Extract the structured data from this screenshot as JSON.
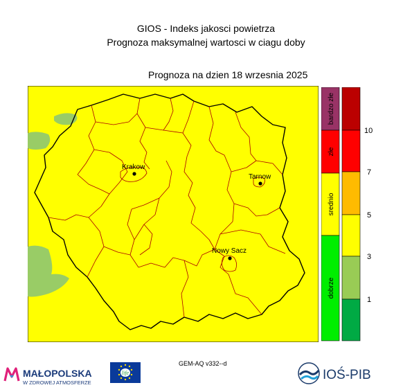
{
  "title_line1": "GIOS - Indeks jakosci powietrza",
  "title_line2": "Prognoza maksymalnej wartosci w ciagu doby",
  "forecast_date": "Prognoza na dzien  18 wrzesnia 2025",
  "model_label": "GEM-AQ v332--d",
  "cities": [
    {
      "name": "Krakow"
    },
    {
      "name": "Tarnow"
    },
    {
      "name": "Nowy Sacz"
    }
  ],
  "category_labels": [
    "bardzo złe",
    "złe",
    "srednio",
    "dobrze"
  ],
  "scale_ticks": [
    "10",
    "7",
    "5",
    "3",
    "1"
  ],
  "logos": {
    "malopolska_name": "MAŁOPOLSKA",
    "malopolska_tagline": "W ZDROWEJ ATMOSFERZE",
    "eu_text": "life",
    "ios_name": "IOŚ-PIB"
  },
  "colors": {
    "background_field": "#ffff00",
    "good_patch": "#99cc66",
    "dark_green": "#00aa44",
    "light_green": "#99cc55",
    "yellow": "#ffff00",
    "orange": "#ffbb00",
    "red": "#ff0000",
    "dark_red": "#bb0000",
    "purple": "#993366",
    "border": "#000000",
    "district": "#aa0000"
  }
}
